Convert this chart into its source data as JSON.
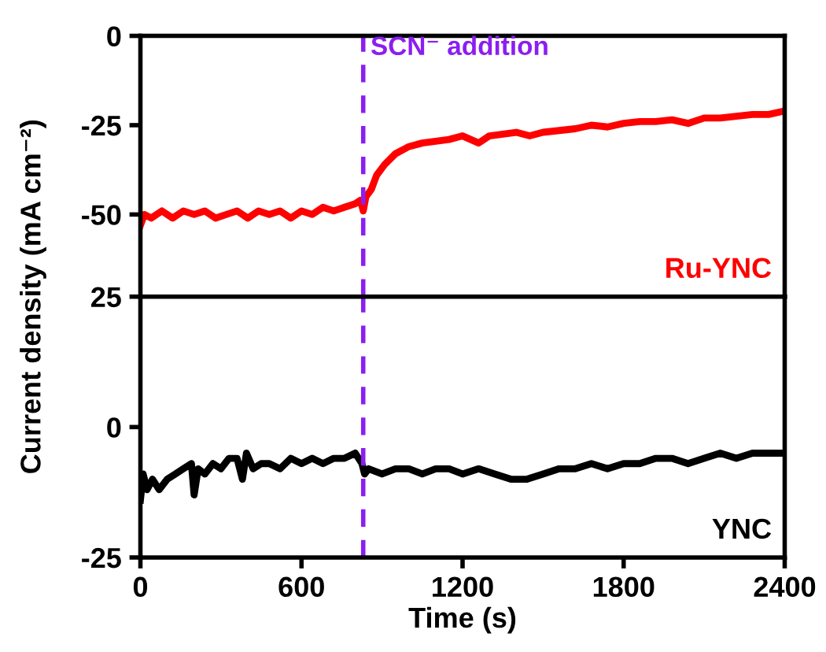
{
  "chart_data": [
    {
      "type": "line",
      "ylabel": "Current density (mA cm⁻²)",
      "xlim": [
        0,
        2400
      ],
      "ylim": [
        -73,
        0
      ],
      "yticks": [
        0,
        -25,
        -50
      ],
      "tick_labels": "y",
      "legend": false,
      "grid": false,
      "ref_lines": [
        {
          "axis": "x",
          "value": 830,
          "label": "SCN⁻ addition",
          "color": "#8b1ef0",
          "line_style": "dashed"
        }
      ],
      "series": [
        {
          "name": "Ru-YNC",
          "color": "#ff0000",
          "x": [
            0,
            15,
            40,
            80,
            120,
            160,
            200,
            240,
            280,
            320,
            360,
            400,
            440,
            480,
            520,
            560,
            600,
            640,
            680,
            720,
            760,
            800,
            820,
            830,
            840,
            860,
            880,
            910,
            950,
            1000,
            1050,
            1100,
            1150,
            1200,
            1260,
            1300,
            1350,
            1400,
            1450,
            1500,
            1560,
            1620,
            1680,
            1740,
            1800,
            1860,
            1920,
            1980,
            2040,
            2100,
            2160,
            2220,
            2280,
            2340,
            2400
          ],
          "values": [
            -53,
            -50,
            -51,
            -49,
            -51,
            -49,
            -50,
            -49,
            -51,
            -50,
            -49,
            -51,
            -49,
            -50,
            -49,
            -51,
            -49,
            -50,
            -48,
            -49,
            -48,
            -47,
            -46,
            -49,
            -45,
            -43,
            -39,
            -36,
            -33,
            -31,
            -30,
            -29.5,
            -29,
            -28,
            -30,
            -28,
            -27.5,
            -27,
            -28,
            -27,
            -26.5,
            -26,
            -25,
            -25.5,
            -24.5,
            -24,
            -24,
            -23.5,
            -24.5,
            -23,
            -23,
            -22.5,
            -22,
            -22,
            -21
          ]
        }
      ]
    },
    {
      "type": "line",
      "xlabel": "Time (s)",
      "xlim": [
        0,
        2400
      ],
      "xticks": [
        0,
        600,
        1200,
        1800,
        2400
      ],
      "ylim": [
        -25,
        25
      ],
      "yticks": [
        -25,
        0,
        25
      ],
      "legend": false,
      "grid": false,
      "ref_lines": [
        {
          "axis": "x",
          "value": 830,
          "color": "#8b1ef0",
          "line_style": "dashed"
        }
      ],
      "series": [
        {
          "name": "YNC",
          "color": "#000000",
          "x": [
            0,
            10,
            25,
            45,
            70,
            100,
            130,
            160,
            190,
            200,
            215,
            240,
            270,
            300,
            330,
            360,
            380,
            395,
            420,
            450,
            480,
            520,
            560,
            600,
            640,
            680,
            720,
            760,
            800,
            825,
            835,
            850,
            900,
            950,
            1000,
            1050,
            1100,
            1150,
            1200,
            1260,
            1320,
            1380,
            1440,
            1500,
            1560,
            1620,
            1680,
            1740,
            1800,
            1860,
            1920,
            1980,
            2040,
            2100,
            2160,
            2220,
            2280,
            2340,
            2400
          ],
          "values": [
            -14,
            -9,
            -12,
            -10,
            -12,
            -10,
            -9,
            -8,
            -7,
            -13,
            -8,
            -9,
            -7,
            -8,
            -6,
            -6,
            -10,
            -5,
            -8,
            -7,
            -7,
            -8,
            -6,
            -7,
            -6,
            -7,
            -6,
            -6,
            -5,
            -7,
            -9,
            -8,
            -9,
            -8,
            -8,
            -9,
            -8,
            -8,
            -9,
            -8,
            -9,
            -10,
            -10,
            -9,
            -8,
            -8,
            -7,
            -8,
            -7,
            -7,
            -6,
            -6,
            -7,
            -6,
            -5,
            -6,
            -5,
            -5,
            -5
          ]
        }
      ]
    }
  ]
}
